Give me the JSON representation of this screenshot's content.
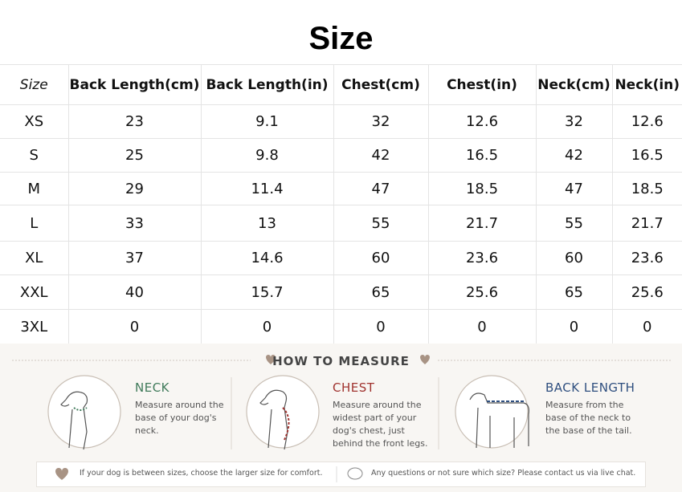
{
  "title": "Size",
  "table": {
    "header": [
      "Size",
      "Back Length(cm)",
      "Back Length(in)",
      "Chest(cm)",
      "Chest(in)",
      "Neck(cm)",
      "Neck(in)"
    ],
    "rows": [
      [
        "XS",
        "23",
        "9.1",
        "32",
        "12.6",
        "32",
        "12.6"
      ],
      [
        "S",
        "25",
        "9.8",
        "42",
        "16.5",
        "42",
        "16.5"
      ],
      [
        "M",
        "29",
        "11.4",
        "47",
        "18.5",
        "47",
        "18.5"
      ],
      [
        "L",
        "33",
        "13",
        "55",
        "21.7",
        "55",
        "21.7"
      ],
      [
        "XL",
        "37",
        "14.6",
        "60",
        "23.6",
        "60",
        "23.6"
      ],
      [
        "XXL",
        "40",
        "15.7",
        "65",
        "25.6",
        "65",
        "25.6"
      ],
      [
        "3XL",
        "0",
        "0",
        "0",
        "0",
        "0",
        "0"
      ]
    ]
  },
  "measure": {
    "title": "HOW TO MEASURE",
    "items": [
      {
        "label": "NECK",
        "text": "Measure around the base of your dog's neck."
      },
      {
        "label": "CHEST",
        "text": "Measure around the widest part of your dog's chest, just behind the front legs."
      },
      {
        "label": "BACK LENGTH",
        "text": "Measure from the base of the neck to the base of the tail."
      }
    ],
    "notes": [
      "If your dog is between sizes, choose the larger size for comfort.",
      "Any questions or not sure which size? Please contact us via live chat."
    ]
  }
}
